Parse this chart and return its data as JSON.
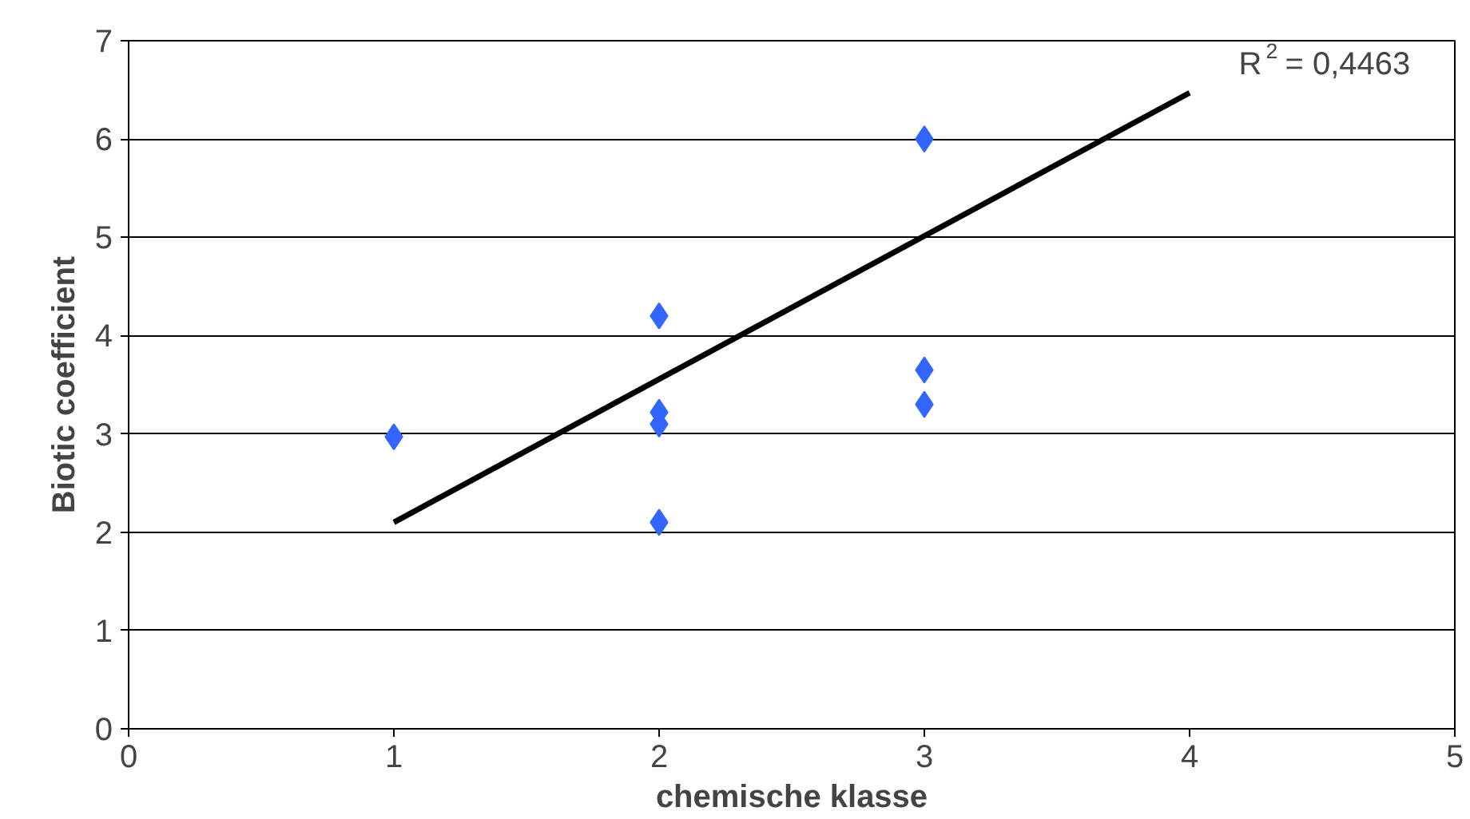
{
  "chart_data": {
    "type": "scatter",
    "xlabel": "chemische klasse",
    "ylabel": "Biotic coefficient",
    "series": [
      {
        "marker": "diamond",
        "color": "#3366ff",
        "x": [
          1,
          2,
          2,
          2,
          2,
          3,
          3,
          3
        ],
        "values": [
          2.97,
          4.2,
          3.22,
          3.1,
          2.1,
          6.0,
          3.65,
          3.3
        ]
      },
      {
        "type": "line",
        "marker": "none",
        "color": "#000000",
        "x": [
          1,
          4
        ],
        "values": [
          2.1,
          6.47
        ]
      }
    ],
    "annotations": [
      "R$^{2}$ = 0,4463"
    ],
    "xlim": [
      0,
      5
    ],
    "xticks": [
      0,
      1,
      2,
      3,
      4,
      5
    ],
    "ylim": [
      0,
      7
    ],
    "yticks": [
      0,
      1,
      2,
      3,
      4,
      5,
      6,
      7
    ],
    "grid": "y"
  }
}
